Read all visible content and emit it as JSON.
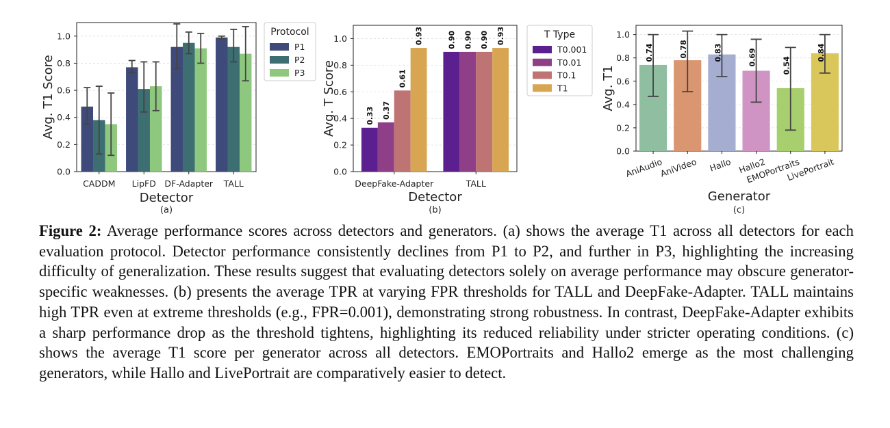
{
  "chart_data": [
    {
      "type": "bar",
      "panel_label": "(a)",
      "xlabel": "Detector",
      "ylabel": "Avg. T1 Score",
      "ylim": [
        0,
        1.1
      ],
      "yticks": [
        "0.0",
        "0.2",
        "0.4",
        "0.6",
        "0.8",
        "1.0"
      ],
      "categories": [
        "CADDM",
        "LipFD",
        "DF-Adapter",
        "TALL"
      ],
      "legend_title": "Protocol",
      "legend_position": "outside-right",
      "grid": "y-dashed",
      "series": [
        {
          "name": "P1",
          "color": "#3e4a7a",
          "values": [
            0.48,
            0.77,
            0.92,
            0.99
          ],
          "err_low": [
            0.35,
            0.73,
            0.76,
            0.98
          ],
          "err_high": [
            0.62,
            0.82,
            1.09,
            1.0
          ]
        },
        {
          "name": "P2",
          "color": "#3d6f72",
          "values": [
            0.38,
            0.61,
            0.95,
            0.92
          ],
          "err_low": [
            0.13,
            0.44,
            0.87,
            0.81
          ],
          "err_high": [
            0.63,
            0.81,
            1.03,
            1.05
          ]
        },
        {
          "name": "P3",
          "color": "#8ec77e",
          "values": [
            0.35,
            0.63,
            0.91,
            0.87
          ],
          "err_low": [
            0.12,
            0.45,
            0.8,
            0.67
          ],
          "err_high": [
            0.58,
            0.81,
            1.02,
            1.07
          ]
        }
      ]
    },
    {
      "type": "bar",
      "panel_label": "(b)",
      "xlabel": "Detector",
      "ylabel": "Avg. T Score",
      "ylim": [
        0,
        1.1
      ],
      "yticks": [
        "0.0",
        "0.2",
        "0.4",
        "0.6",
        "0.8",
        "1.0"
      ],
      "categories": [
        "DeepFake-Adapter",
        "TALL"
      ],
      "legend_title": "T Type",
      "legend_position": "outside-right",
      "grid": "y-dashed",
      "series": [
        {
          "name": "T0.001",
          "color": "#5b1f8f",
          "values": [
            0.33,
            0.9
          ],
          "labels": [
            "0.33",
            "0.90"
          ]
        },
        {
          "name": "T0.01",
          "color": "#8e3f87",
          "values": [
            0.37,
            0.9
          ],
          "labels": [
            "0.37",
            "0.90"
          ]
        },
        {
          "name": "T0.1",
          "color": "#bf7474",
          "values": [
            0.61,
            0.9
          ],
          "labels": [
            "0.61",
            "0.90"
          ]
        },
        {
          "name": "T1",
          "color": "#d8a653",
          "values": [
            0.93,
            0.93
          ],
          "labels": [
            "0.93",
            "0.93"
          ]
        }
      ]
    },
    {
      "type": "bar",
      "panel_label": "(c)",
      "xlabel": "Generator",
      "ylabel": "Avg. T1",
      "ylim": [
        0,
        1.08
      ],
      "yticks": [
        "0.0",
        "0.2",
        "0.4",
        "0.6",
        "0.8",
        "1.0"
      ],
      "categories": [
        "AniAudio",
        "AniVideo",
        "Hallo",
        "Hallo2",
        "EMOPortraits",
        "LivePortrait"
      ],
      "grid": "y-dashed",
      "values": [
        0.74,
        0.78,
        0.83,
        0.69,
        0.54,
        0.84
      ],
      "labels": [
        "0.74",
        "0.78",
        "0.83",
        "0.69",
        "0.54",
        "0.84"
      ],
      "colors": [
        "#8fbfa0",
        "#d99670",
        "#a5aed1",
        "#cf94c4",
        "#a8cf6e",
        "#d9c75c"
      ],
      "err_low": [
        0.47,
        0.51,
        0.64,
        0.42,
        0.18,
        0.67
      ],
      "err_high": [
        1.0,
        1.03,
        1.0,
        0.96,
        0.89,
        1.0
      ]
    }
  ],
  "caption": {
    "label": "Figure 2:",
    "text": " Average performance scores across detectors and generators. (a) shows the average T1 across all detectors for each evaluation protocol. Detector performance consistently declines from P1 to P2, and further in P3, highlighting the increasing difficulty of generalization. These results suggest that evaluating detectors solely on average performance may obscure generator-specific weaknesses. (b) presents the average TPR at varying FPR thresholds for TALL and DeepFake-Adapter. TALL maintains high TPR even at extreme thresholds (e.g., FPR=0.001), demonstrating strong robustness. In contrast, DeepFake-Adapter exhibits a sharp performance drop as the threshold tightens, highlighting its reduced reliability under stricter operating conditions. (c) shows the average T1 score per generator across all detectors. EMOPortraits and Hallo2 emerge as the most challenging generators, while Hallo and LivePortrait are comparatively easier to detect."
  }
}
